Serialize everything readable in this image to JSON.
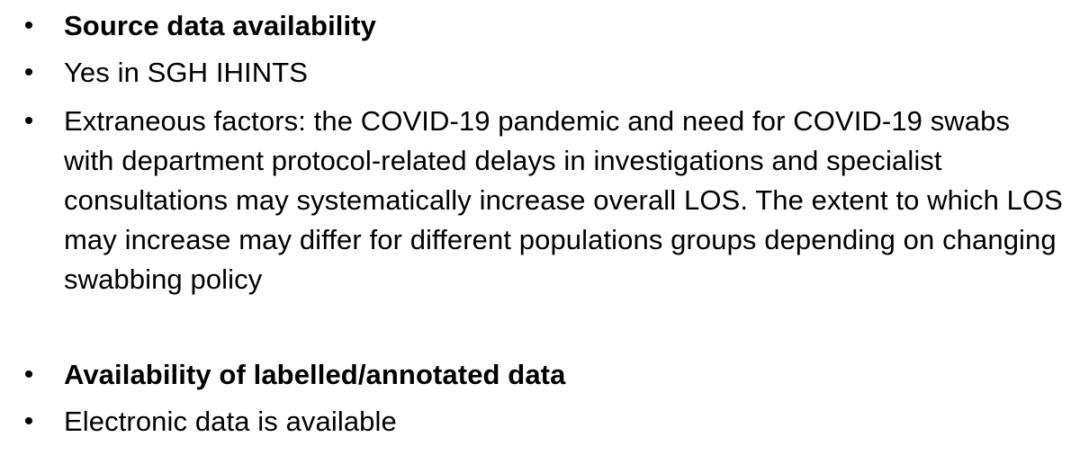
{
  "bullets": [
    {
      "marker": "•",
      "text": "Source data availability",
      "bold": true
    },
    {
      "marker": "•",
      "text": "Yes in SGH IHINTS",
      "bold": false
    },
    {
      "marker": "•",
      "text": "Extraneous factors: the COVID-19 pandemic and need for COVID-19 swabs with department protocol-related delays in investigations and specialist consultations may systematically increase overall LOS. The extent to which LOS may increase may differ for different populations groups depending on changing swabbing policy",
      "bold": false
    },
    {
      "marker": "•",
      "text": "Availability of labelled/annotated data",
      "bold": true
    },
    {
      "marker": "•",
      "text": "Electronic data is available",
      "bold": false
    }
  ]
}
